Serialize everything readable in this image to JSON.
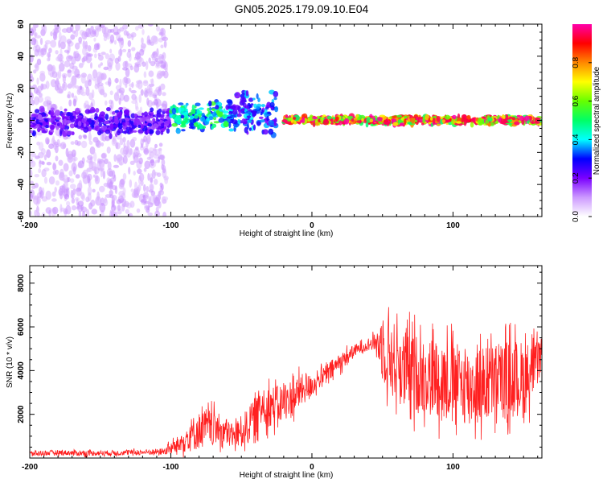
{
  "figure_title": "GN05.2025.179.09.10.E04",
  "chart_data": [
    {
      "type": "heatmap",
      "title": "GN05.2025.179.09.10.E04",
      "xlabel": "Height of straight line (km)",
      "ylabel": "Frequency (Hz)",
      "xlim": [
        -200,
        163
      ],
      "ylim": [
        -60,
        60
      ],
      "x_ticks": [
        -200,
        -100,
        0,
        100
      ],
      "y_ticks": [
        -60,
        -40,
        -20,
        0,
        20,
        40,
        60
      ],
      "grid": false,
      "colorbar": {
        "label": "Normalized spectral amplitude",
        "range": [
          0,
          1
        ],
        "ticks": [
          0.0,
          0.2,
          0.4,
          0.6,
          0.8
        ],
        "colors": [
          "#ffffff",
          "#cc99ff",
          "#7a00ff",
          "#0000ff",
          "#00ffff",
          "#00ff66",
          "#66ff00",
          "#ffff00",
          "#ff8800",
          "#ff0000",
          "#ff00aa"
        ]
      },
      "features": [
        {
          "x_range": [
            -200,
            -103
          ],
          "y_range": [
            -60,
            60
          ],
          "amplitude": 0.1,
          "description": "broadband scatter"
        },
        {
          "x_range": [
            -200,
            -100
          ],
          "y_range": [
            -10,
            8
          ],
          "amplitude": 0.25
        },
        {
          "x_range": [
            -100,
            -60
          ],
          "y_range": [
            -8,
            12
          ],
          "amplitude": 0.5
        },
        {
          "x_range": [
            -60,
            -25
          ],
          "y_range": [
            -10,
            20
          ],
          "amplitude": 0.35
        },
        {
          "x_range": [
            -20,
            163
          ],
          "y_range": [
            -3,
            3
          ],
          "amplitude": 0.9
        }
      ]
    },
    {
      "type": "line",
      "xlabel": "Height of straight line (km)",
      "ylabel": "SNR (10 * v/v)",
      "xlim": [
        -200,
        163
      ],
      "ylim": [
        0,
        8800
      ],
      "x_ticks": [
        -200,
        -100,
        0,
        100
      ],
      "y_ticks": [
        2000,
        4000,
        6000,
        8000
      ],
      "grid": false,
      "color": "#ff2020",
      "series": [
        {
          "x": [
            -200,
            -180,
            -160,
            -140,
            -120,
            -105,
            -95,
            -85,
            -75,
            -65,
            -55,
            -45,
            -35,
            -25,
            -15,
            -5,
            0,
            5,
            10,
            20,
            30,
            40,
            45,
            50,
            55,
            60,
            70,
            80,
            90,
            100,
            110,
            120,
            130,
            140,
            150,
            160,
            163
          ],
          "values": [
            200,
            250,
            220,
            240,
            260,
            300,
            600,
            1100,
            1400,
            1300,
            1000,
            1500,
            2400,
            2400,
            2700,
            3200,
            3300,
            3600,
            3800,
            4400,
            4900,
            5200,
            5300,
            5100,
            4700,
            4300,
            3900,
            3800,
            3700,
            3500,
            3300,
            3300,
            3500,
            3600,
            3600,
            4300,
            4800
          ],
          "noise_amplitude": [
            120,
            120,
            120,
            120,
            120,
            150,
            400,
            800,
            900,
            700,
            600,
            800,
            1000,
            900,
            900,
            700,
            500,
            400,
            500,
            400,
            300,
            200,
            400,
            1600,
            1800,
            1800,
            1800,
            1800,
            1800,
            1800,
            1800,
            1800,
            1800,
            1800,
            1800,
            1000,
            700
          ]
        }
      ]
    }
  ]
}
